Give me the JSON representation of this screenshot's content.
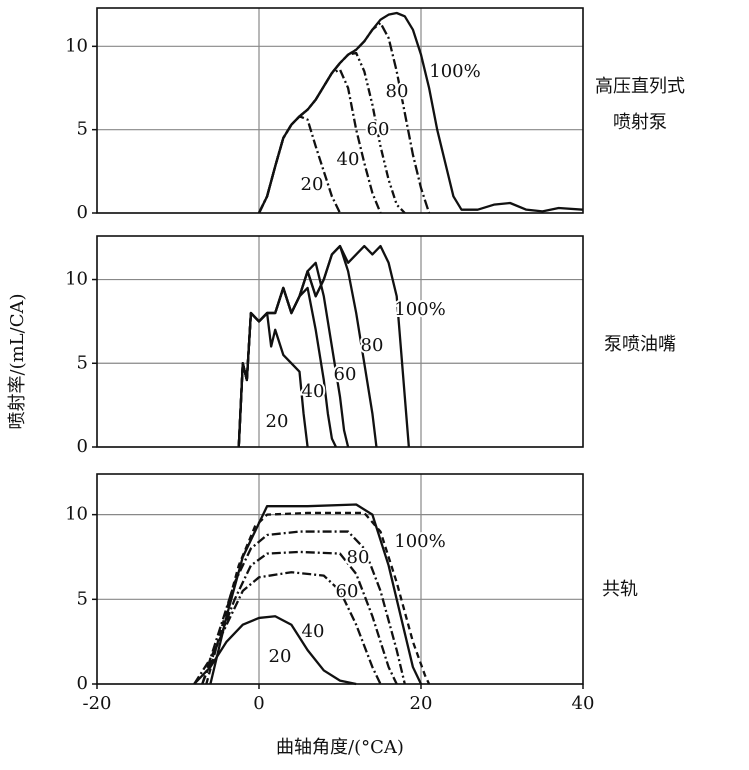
{
  "chart_data": [
    {
      "type": "line",
      "title": [
        "高压直列式",
        "喷射泵"
      ],
      "xlim": [
        -20,
        40
      ],
      "ylim": [
        0,
        12.3
      ],
      "yticks": [
        0,
        5,
        10
      ],
      "grid": true,
      "series": [
        {
          "name": "20",
          "color": "#111111",
          "dash": "9,3,2,3",
          "x": [
            0,
            1,
            2,
            3,
            4,
            5,
            6,
            7,
            8,
            9,
            10
          ],
          "values": [
            0,
            1,
            2.8,
            4.5,
            5.3,
            5.8,
            5.6,
            4,
            2.5,
            1,
            0
          ]
        },
        {
          "name": "40",
          "color": "#111111",
          "dash": "9,3,2,3",
          "x": [
            0,
            1,
            2,
            3,
            4,
            5,
            6,
            7,
            8,
            9,
            10,
            11,
            12,
            13,
            14,
            15
          ],
          "values": [
            0,
            1,
            2.8,
            4.5,
            5.3,
            5.8,
            6.2,
            6.8,
            7.6,
            8.4,
            8.6,
            7.5,
            5,
            3,
            1.2,
            0
          ]
        },
        {
          "name": "60",
          "color": "#111111",
          "dash": "8,3,2,3,2,3",
          "x": [
            0,
            1,
            2,
            3,
            4,
            5,
            6,
            7,
            8,
            9,
            10,
            11,
            12,
            13,
            14,
            15,
            16,
            17,
            18
          ],
          "values": [
            0,
            1,
            2.8,
            4.5,
            5.3,
            5.8,
            6.2,
            6.8,
            7.6,
            8.4,
            9,
            9.5,
            9.6,
            8.5,
            6.5,
            4,
            2,
            0.5,
            0
          ]
        },
        {
          "name": "80",
          "color": "#111111",
          "dash": "10,3,2,3",
          "x": [
            0,
            1,
            2,
            3,
            4,
            5,
            6,
            7,
            8,
            9,
            10,
            11,
            12,
            13,
            14,
            15,
            16,
            17,
            18,
            19,
            20,
            21
          ],
          "values": [
            0,
            1,
            2.8,
            4.5,
            5.3,
            5.8,
            6.2,
            6.8,
            7.6,
            8.4,
            9,
            9.5,
            9.8,
            10.3,
            11,
            11.4,
            10.5,
            8.5,
            6,
            3.5,
            1.5,
            0
          ]
        },
        {
          "name": "100%",
          "color": "#111111",
          "x": [
            0,
            1,
            2,
            3,
            4,
            5,
            6,
            7,
            8,
            9,
            10,
            11,
            12,
            13,
            14,
            15,
            16,
            17,
            18,
            19,
            20,
            21,
            22,
            23,
            24,
            25,
            27,
            29,
            31,
            33,
            35,
            37,
            40
          ],
          "values": [
            0,
            1,
            2.8,
            4.5,
            5.3,
            5.8,
            6.2,
            6.8,
            7.6,
            8.4,
            9,
            9.5,
            9.8,
            10.3,
            11,
            11.6,
            11.9,
            12,
            11.8,
            11,
            9.5,
            7.5,
            5,
            3,
            1,
            0.2,
            0.2,
            0.5,
            0.6,
            0.2,
            0.1,
            0.3,
            0.2
          ]
        }
      ]
    },
    {
      "type": "line",
      "title": [
        "泵喷油嘴"
      ],
      "ylabel": "喷射率/(mL/CA)",
      "xlim": [
        -20,
        40
      ],
      "ylim": [
        0,
        12.6
      ],
      "yticks": [
        0,
        5,
        10
      ],
      "grid": true,
      "series": [
        {
          "name": "20",
          "color": "#111111",
          "x": [
            -2.5,
            -2,
            -1.5,
            -1,
            0,
            1,
            1.5,
            2,
            3,
            4,
            5,
            5.5,
            6
          ],
          "values": [
            0,
            5,
            4,
            8,
            7.5,
            8,
            6,
            7,
            5.5,
            5,
            4.5,
            2,
            0
          ]
        },
        {
          "name": "40",
          "color": "#111111",
          "x": [
            -2.5,
            -2,
            -1.5,
            -1,
            0,
            1,
            2,
            3,
            4,
            5,
            6,
            7,
            8,
            8.5,
            9,
            9.5
          ],
          "values": [
            0,
            5,
            4,
            8,
            7.5,
            8,
            8,
            9.5,
            8,
            9,
            9.5,
            7,
            4,
            2,
            0.5,
            0
          ]
        },
        {
          "name": "60",
          "color": "#111111",
          "x": [
            -2.5,
            -2,
            -1.5,
            -1,
            0,
            1,
            2,
            3,
            4,
            5,
            6,
            7,
            8,
            9,
            10,
            10.5,
            11
          ],
          "values": [
            0,
            5,
            4,
            8,
            7.5,
            8,
            8,
            9.5,
            8,
            9,
            10.5,
            11,
            9,
            6,
            3,
            1,
            0
          ]
        },
        {
          "name": "80",
          "color": "#111111",
          "x": [
            -2.5,
            -2,
            -1.5,
            -1,
            0,
            1,
            2,
            3,
            4,
            5,
            6,
            7,
            8,
            9,
            10,
            11,
            12,
            13,
            14,
            14.5
          ],
          "values": [
            0,
            5,
            4,
            8,
            7.5,
            8,
            8,
            9.5,
            8,
            9,
            10.5,
            9,
            10,
            11.5,
            12,
            10.5,
            8,
            5,
            2,
            0
          ]
        },
        {
          "name": "100%",
          "color": "#111111",
          "x": [
            -2.5,
            -2,
            -1.5,
            -1,
            0,
            1,
            2,
            3,
            4,
            5,
            6,
            7,
            8,
            9,
            10,
            11,
            12,
            13,
            14,
            15,
            16,
            17,
            17.5,
            18,
            18.5
          ],
          "values": [
            0,
            5,
            4,
            8,
            7.5,
            8,
            8,
            9.5,
            8,
            9,
            10.5,
            9,
            10,
            11.5,
            12,
            11,
            11.5,
            12,
            11.5,
            12,
            11,
            9,
            6,
            3,
            0
          ]
        }
      ]
    },
    {
      "type": "line",
      "title": [
        "共轨"
      ],
      "xlabel": "曲轴角度/(°CA)",
      "xlim": [
        -20,
        40
      ],
      "ylim": [
        0,
        12.4
      ],
      "xticks": [
        -20,
        0,
        20,
        40
      ],
      "yticks": [
        0,
        5,
        10
      ],
      "grid": true,
      "series": [
        {
          "name": "20",
          "color": "#111111",
          "x": [
            -8,
            -6,
            -4,
            -2,
            0,
            2,
            4,
            6,
            8,
            10,
            12
          ],
          "values": [
            0,
            1,
            2.5,
            3.5,
            3.9,
            4,
            3.5,
            2,
            0.8,
            0.2,
            0
          ]
        },
        {
          "name": "40",
          "color": "#111111",
          "dash": "9,3,2,3",
          "x": [
            -8,
            -6,
            -4,
            -2,
            0,
            4,
            8,
            10,
            12,
            14,
            15
          ],
          "values": [
            0,
            1.5,
            3.5,
            5.5,
            6.3,
            6.6,
            6.4,
            5.5,
            3.5,
            1,
            0
          ]
        },
        {
          "name": "60",
          "color": "#111111",
          "dash": "9,3,2,3",
          "x": [
            -7,
            -5,
            -3,
            -1,
            1,
            5,
            10,
            12,
            14,
            16,
            17
          ],
          "values": [
            0,
            2.5,
            5,
            7,
            7.7,
            7.8,
            7.7,
            6.5,
            4,
            1,
            0
          ]
        },
        {
          "name": "80",
          "color": "#111111",
          "dash": "9,3,2,3",
          "x": [
            -7,
            -5,
            -3,
            -1,
            1,
            5,
            11,
            13,
            15,
            17,
            18
          ],
          "values": [
            0,
            3,
            6,
            8,
            8.8,
            9,
            9,
            8,
            5.5,
            2,
            0
          ]
        },
        {
          "name": "100%",
          "color": "#111111",
          "dash": "6,4",
          "x": [
            -6.5,
            -4.5,
            -2.5,
            -0.5,
            1,
            6,
            13,
            15,
            17,
            19,
            20.5,
            21
          ],
          "values": [
            0,
            3.5,
            7,
            9.3,
            10,
            10.1,
            10.1,
            9,
            6,
            2.5,
            0.5,
            0
          ]
        },
        {
          "color": "#111111",
          "x": [
            -6,
            -4,
            -2,
            0,
            1,
            6,
            12,
            14,
            16,
            18,
            19,
            20
          ],
          "values": [
            0,
            4,
            7.5,
            9.5,
            10.5,
            10.5,
            10.6,
            10,
            7,
            3,
            1,
            0
          ]
        }
      ]
    }
  ]
}
